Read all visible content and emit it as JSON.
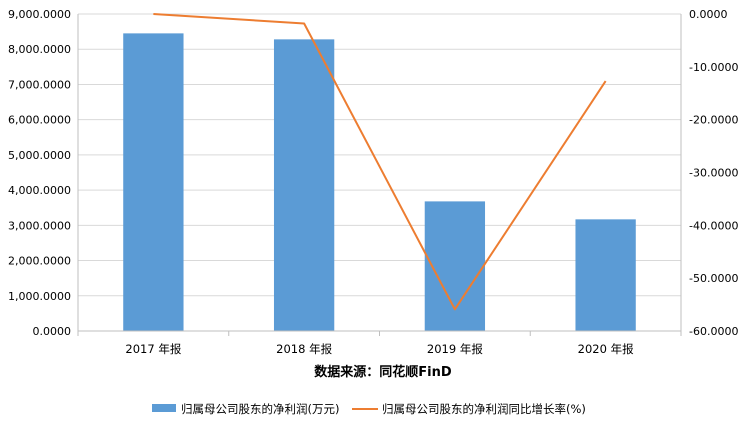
{
  "chart_data": {
    "type": "bar+line",
    "categories": [
      "2017 年报",
      "2018 年报",
      "2019 年报",
      "2020 年报"
    ],
    "series": [
      {
        "name": "归属母公司股东的净利润(万元)",
        "type": "bar",
        "axis": "left",
        "color": "#5b9bd5",
        "values": [
          8450,
          8280,
          3680,
          3170
        ]
      },
      {
        "name": "归属母公司股东的净利润同比增长率(%)",
        "type": "line",
        "axis": "right",
        "color": "#ed7d31",
        "values": [
          0,
          -1.8,
          -55.9,
          -12.7
        ]
      }
    ],
    "left_axis": {
      "ylim": [
        0,
        9000
      ],
      "ticks": [
        "0.0000",
        "1,000.0000",
        "2,000.0000",
        "3,000.0000",
        "4,000.0000",
        "5,000.0000",
        "6,000.0000",
        "7,000.0000",
        "8,000.0000",
        "9,000.0000"
      ]
    },
    "right_axis": {
      "ylim": [
        -60,
        0
      ],
      "ticks": [
        "-60.0000",
        "-50.0000",
        "-40.0000",
        "-30.0000",
        "-20.0000",
        "-10.0000",
        "0.0000"
      ]
    },
    "xlabel": "数据来源：同花顺FinD",
    "grid": true,
    "legend_position": "bottom"
  }
}
